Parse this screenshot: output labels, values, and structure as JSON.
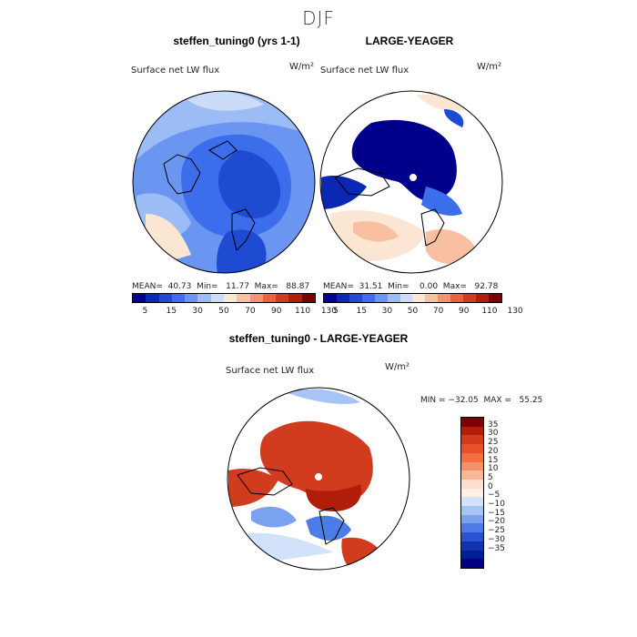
{
  "title": "DJF",
  "panels": {
    "left": {
      "title": "steffen_tuning0 (yrs 1-1)",
      "variable": "Surface net LW flux",
      "units": "W/m²",
      "stats": "MEAN=  40.73  Min=   11.77  Max=   88.87"
    },
    "right": {
      "title": "LARGE-YEAGER",
      "variable": "Surface net LW flux",
      "units": "W/m²",
      "stats": "MEAN=  31.51  Min=    0.00  Max=   92.78"
    },
    "diff": {
      "title": "steffen_tuning0 - LARGE-YEAGER",
      "variable": "Surface net LW flux",
      "units": "W/m²",
      "stats": "MIN = −32.05  MAX =   55.25"
    }
  },
  "colorbar_top": {
    "labels": [
      "5",
      "15",
      "30",
      "50",
      "70",
      "90",
      "110",
      "130"
    ],
    "colors": [
      "#00008b",
      "#0a28b4",
      "#1e4bd2",
      "#3c6eeb",
      "#6a96f2",
      "#9cbcf6",
      "#cadcf8",
      "#fae6d2",
      "#f8c0a0",
      "#f3946e",
      "#e8643f",
      "#d23c1e",
      "#b01e0a",
      "#7d0000"
    ]
  },
  "colorbar_diff": {
    "labels": [
      "35",
      "30",
      "25",
      "20",
      "15",
      "10",
      "5",
      "0",
      "−5",
      "−10",
      "−15",
      "−20",
      "−25",
      "−30",
      "−35"
    ],
    "colors": [
      "#7d0000",
      "#b01e0a",
      "#d23c1e",
      "#e8502a",
      "#f06e40",
      "#f49068",
      "#f8b898",
      "#fde0cc",
      "#fdf0e4",
      "#d2e2fa",
      "#a8c4f4",
      "#7aa2ee",
      "#4c7ce6",
      "#2a52d2",
      "#1232b0",
      "#001e96",
      "#000080"
    ]
  }
}
